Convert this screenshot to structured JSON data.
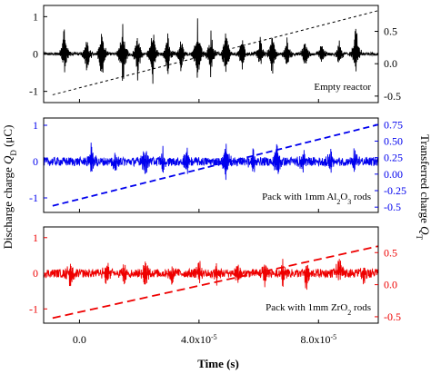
{
  "chart_data": {
    "type": "line",
    "xlabel": "Time (s)",
    "xlim": [
      -1.2e-05,
      0.0001
    ],
    "xticks": [
      {
        "value": 0.0,
        "label": "0.0"
      },
      {
        "value": 4e-05,
        "base": "4.0x10",
        "exp": "-5"
      },
      {
        "value": 8e-05,
        "base": "8.0x10",
        "exp": "-5"
      }
    ],
    "ylabel_left": {
      "main": "Discharge charge ",
      "var": "Q",
      "sub": "D",
      "unit": " (μC)"
    },
    "ylabel_right": {
      "main": "Transferred charge ",
      "var": "Q",
      "sub": "T"
    },
    "panels": [
      {
        "color": "#000000",
        "annotation": {
          "parts": [
            {
              "t": "Empty reactor"
            }
          ]
        },
        "left_ylim": [
          -1.3,
          1.3
        ],
        "left_ticks": [
          -1,
          0,
          1
        ],
        "right_ylim": [
          -0.6,
          0.9
        ],
        "right_ticks": [
          -0.5,
          0.0,
          0.5
        ],
        "right_tick_labels": [
          "-0.5",
          "0.0",
          "0.5"
        ],
        "discharge": {
          "baseline": 0.04,
          "bursts": [
            [
              -5e-06,
              0.9,
              -0.55
            ],
            [
              2.5e-06,
              0.55,
              -0.65
            ],
            [
              7.5e-06,
              0.8,
              -0.85
            ],
            [
              1.45e-05,
              0.95,
              -1.05
            ],
            [
              1.95e-05,
              0.65,
              -0.8
            ],
            [
              2.45e-05,
              0.85,
              -0.9
            ],
            [
              2.95e-05,
              0.6,
              -0.7
            ],
            [
              3.4e-05,
              0.55,
              -0.6
            ],
            [
              3.95e-05,
              1.05,
              -0.95
            ],
            [
              4.4e-05,
              0.65,
              -0.8
            ],
            [
              4.9e-05,
              0.85,
              -0.8
            ],
            [
              5.45e-05,
              0.6,
              -0.55
            ],
            [
              6.05e-05,
              0.6,
              -0.4
            ],
            [
              6.45e-05,
              0.65,
              -0.65
            ],
            [
              6.95e-05,
              0.45,
              -0.5
            ],
            [
              7.55e-05,
              0.45,
              -0.45
            ],
            [
              8.1e-05,
              0.35,
              -0.35
            ],
            [
              8.7e-05,
              0.4,
              -0.4
            ],
            [
              9.25e-05,
              1.0,
              -0.55
            ]
          ]
        },
        "transferred": {
          "x": [
            -9e-06,
            0.0001
          ],
          "y": [
            -0.48,
            0.82
          ],
          "dash": "3,3"
        }
      },
      {
        "color": "#0000ee",
        "annotation": {
          "parts": [
            {
              "t": "Pack with 1mm Al"
            },
            {
              "t": "2",
              "sub": true
            },
            {
              "t": "O"
            },
            {
              "t": "3",
              "sub": true
            },
            {
              "t": " rods"
            }
          ]
        },
        "left_ylim": [
          -1.4,
          1.2
        ],
        "left_ticks": [
          -1,
          0,
          1
        ],
        "right_ylim": [
          -0.58,
          0.85
        ],
        "right_ticks": [
          -0.5,
          -0.25,
          0.0,
          0.25,
          0.5,
          0.75
        ],
        "right_tick_labels": [
          "-0.5",
          "-0.25",
          "0.00",
          "0.25",
          "0.50",
          "0.75"
        ],
        "discharge": {
          "baseline": 0.12,
          "bursts": [
            [
              4e-06,
              0.55,
              -0.6
            ],
            [
              1.2e-05,
              0.35,
              -0.45
            ],
            [
              2.2e-05,
              0.45,
              -0.4
            ],
            [
              2.8e-05,
              0.4,
              -0.45
            ],
            [
              3.6e-05,
              0.4,
              -0.5
            ],
            [
              4.9e-05,
              0.6,
              -0.75
            ],
            [
              5.8e-05,
              0.45,
              -0.4
            ],
            [
              6.6e-05,
              0.5,
              -0.55
            ],
            [
              7.5e-05,
              0.4,
              -0.45
            ],
            [
              8.4e-05,
              0.45,
              -0.4
            ],
            [
              9.2e-05,
              0.4,
              -0.35
            ]
          ]
        },
        "transferred": {
          "x": [
            -9e-06,
            0.0001
          ],
          "y": [
            -0.48,
            0.75
          ],
          "dash": "7,4"
        }
      },
      {
        "color": "#ee0000",
        "annotation": {
          "parts": [
            {
              "t": "Pack with 1mm ZrO"
            },
            {
              "t": "2",
              "sub": true
            },
            {
              "t": " rods"
            }
          ]
        },
        "left_ylim": [
          -1.4,
          1.3
        ],
        "left_ticks": [
          -1,
          0,
          1
        ],
        "right_ylim": [
          -0.6,
          0.9
        ],
        "right_ticks": [
          -0.5,
          0.0,
          0.5
        ],
        "right_tick_labels": [
          "-0.5",
          "0.0",
          "0.5"
        ],
        "discharge": {
          "baseline": 0.12,
          "bursts": [
            [
              -3e-06,
              0.5,
              -0.6
            ],
            [
              9e-06,
              0.45,
              -0.4
            ],
            [
              1.5e-05,
              0.3,
              -0.35
            ],
            [
              2.2e-05,
              0.45,
              -0.4
            ],
            [
              3.1e-05,
              0.3,
              -0.5
            ],
            [
              4e-05,
              0.4,
              -0.35
            ],
            [
              4.6e-05,
              0.35,
              -0.4
            ],
            [
              5.3e-05,
              0.3,
              -0.4
            ],
            [
              6.2e-05,
              0.35,
              -0.35
            ],
            [
              6.8e-05,
              0.5,
              -0.35
            ],
            [
              7.6e-05,
              0.35,
              -0.5
            ],
            [
              8.7e-05,
              0.65,
              -0.3
            ],
            [
              9.5e-05,
              0.3,
              -0.35
            ]
          ]
        },
        "transferred": {
          "x": [
            -9e-06,
            0.0001
          ],
          "y": [
            -0.52,
            0.6
          ],
          "dash": "9,5"
        }
      }
    ]
  }
}
